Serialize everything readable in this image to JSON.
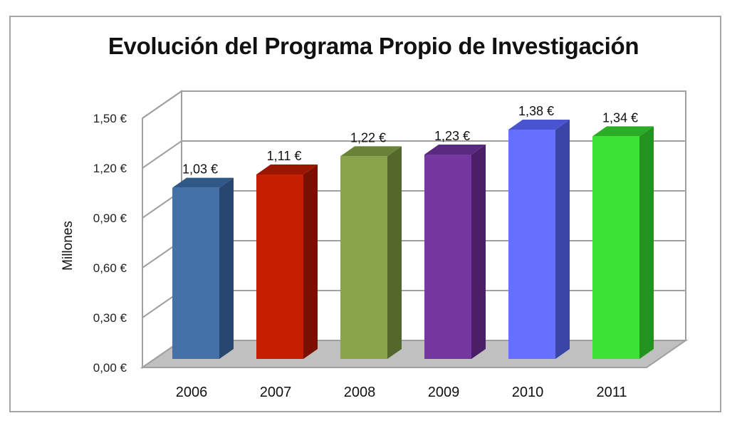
{
  "chart_data": {
    "type": "bar",
    "title": "Evolución del Programa Propio de Investigación",
    "xlabel": "",
    "ylabel": "Millones",
    "categories": [
      "2006",
      "2007",
      "2008",
      "2009",
      "2010",
      "2011"
    ],
    "values": [
      1.03,
      1.11,
      1.22,
      1.23,
      1.38,
      1.34
    ],
    "data_labels": [
      "1,03 €",
      "1,11 €",
      "1,22 €",
      "1,23 €",
      "1,38 €",
      "1,34 €"
    ],
    "yticks": [
      "0,00 €",
      "0,30 €",
      "0,60 €",
      "0,90 €",
      "1,20 €",
      "1,50 €"
    ],
    "ylim": [
      0,
      1.5
    ],
    "grid": true,
    "legend": "none",
    "style": "3d-column",
    "colors": {
      "front": [
        "#4472a8",
        "#c41f00",
        "#89a44b",
        "#7537a0",
        "#6670ff",
        "#3ce336"
      ],
      "side": [
        "#27476e",
        "#7a1000",
        "#54682c",
        "#4a1f68",
        "#3b45a8",
        "#23921e"
      ],
      "top": [
        "#2f5787",
        "#9a1600",
        "#6a8238",
        "#5a2a80",
        "#4a54d0",
        "#2aac25"
      ],
      "floor": "#c0c0c0",
      "gridline": "#a0a0a0"
    }
  }
}
